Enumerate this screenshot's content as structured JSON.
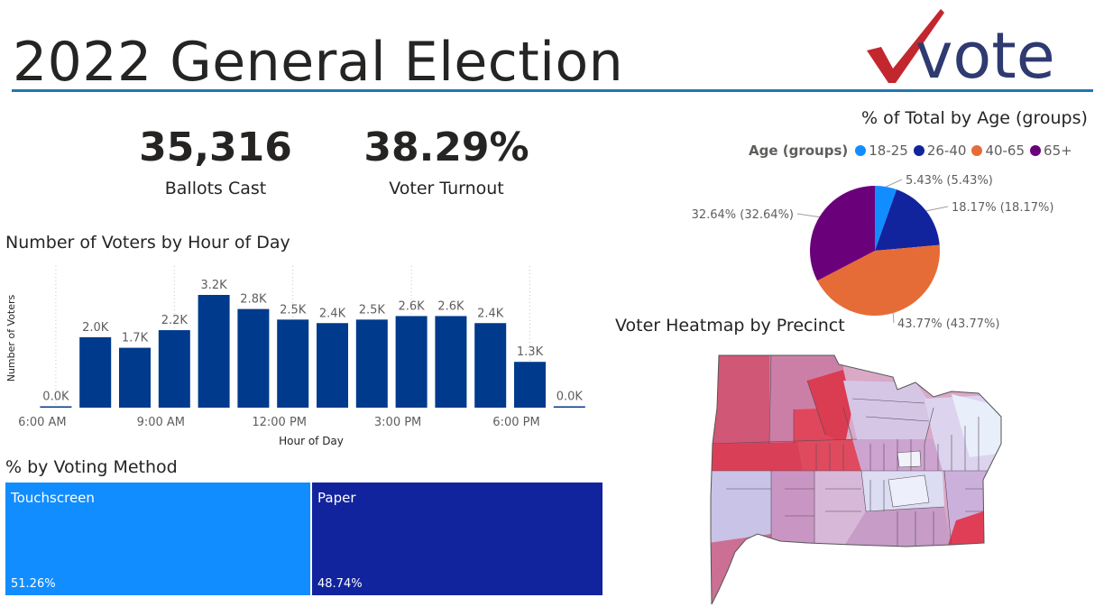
{
  "title": "2022 General Election",
  "logo": {
    "text": "vote",
    "check_color": "#c2272d",
    "text_color": "#2e3a70"
  },
  "kpis": {
    "ballots_value": "35,316",
    "ballots_label": "Ballots Cast",
    "turnout_value": "38.29%",
    "turnout_label": "Voter Turnout"
  },
  "colors": {
    "rule": "#1f77b4",
    "bar": "#003a8c",
    "age_18_25": "#118dff",
    "age_26_40": "#12239e",
    "age_40_65": "#e66c37",
    "age_65_plus": "#6b007b"
  },
  "chart_data": [
    {
      "type": "bar",
      "title": "Number of Voters by Hour of Day",
      "xlabel": "Hour of Day",
      "ylabel": "Number of Voters",
      "categories": [
        "6:00 AM",
        "7:00 AM",
        "8:00 AM",
        "9:00 AM",
        "10:00 AM",
        "11:00 AM",
        "12:00 PM",
        "1:00 PM",
        "2:00 PM",
        "3:00 PM",
        "4:00 PM",
        "5:00 PM",
        "6:00 PM",
        "7:00 PM"
      ],
      "values": [
        0,
        2000,
        1700,
        2200,
        3200,
        2800,
        2500,
        2400,
        2500,
        2600,
        2600,
        2400,
        1300,
        0
      ],
      "data_labels": [
        "0.0K",
        "2.0K",
        "1.7K",
        "2.2K",
        "3.2K",
        "2.8K",
        "2.5K",
        "2.4K",
        "2.5K",
        "2.6K",
        "2.6K",
        "2.4K",
        "1.3K",
        "0.0K"
      ],
      "x_tick_labels": [
        "6:00 AM",
        "9:00 AM",
        "12:00 PM",
        "3:00 PM",
        "6:00 PM"
      ],
      "ylim": [
        0,
        3200
      ],
      "grid": false
    },
    {
      "type": "pie",
      "title": "% of Total by Age (groups)",
      "legend_title": "Age (groups)",
      "legend_position": "top",
      "labels": [
        "18-25",
        "26-40",
        "40-65",
        "65+"
      ],
      "values": [
        5.43,
        18.17,
        43.77,
        32.64
      ],
      "data_labels": [
        "5.43% (5.43%)",
        "18.17% (18.17%)",
        "43.77% (43.77%)",
        "32.64% (32.64%)"
      ]
    },
    {
      "type": "treemap",
      "title": "% by Voting Method",
      "labels": [
        "Touchscreen",
        "Paper"
      ],
      "values": [
        51.26,
        48.74
      ],
      "data_labels": [
        "51.26%",
        "48.74%"
      ],
      "colors": [
        "#118dff",
        "#12239e"
      ]
    }
  ],
  "map": {
    "title": "Voter Heatmap by Precinct"
  }
}
